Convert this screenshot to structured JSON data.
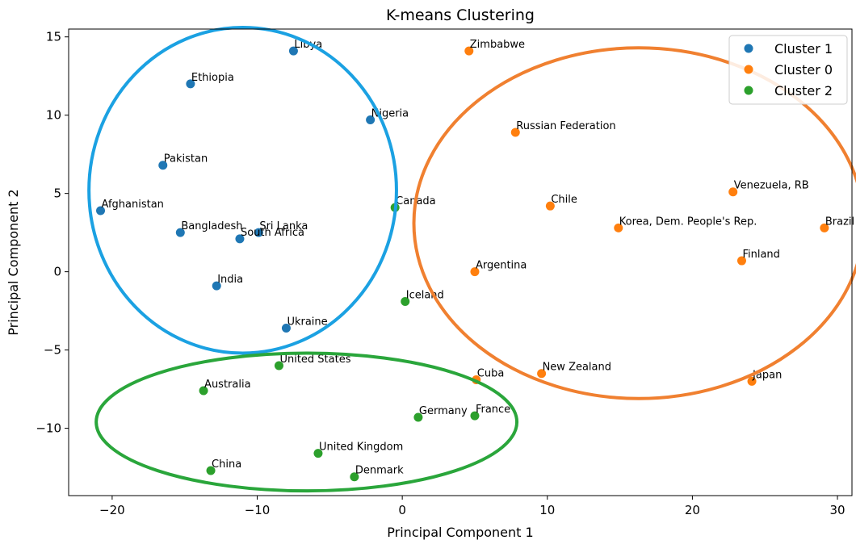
{
  "chart_data": {
    "type": "scatter",
    "title": "K-means Clustering",
    "xlabel": "Principal Component 1",
    "ylabel": "Principal Component 2",
    "xlim": [
      -23,
      31
    ],
    "ylim": [
      -14.3,
      15.5
    ],
    "xticks": [
      -20,
      -10,
      0,
      10,
      20,
      30
    ],
    "yticks": [
      -10,
      -5,
      0,
      5,
      10,
      15
    ],
    "xtick_labels": [
      "−20",
      "−10",
      "0",
      "10",
      "20",
      "30"
    ],
    "ytick_labels": [
      "−10",
      "−5",
      "0",
      "5",
      "10",
      "15"
    ],
    "grid": false,
    "legend_position": "top-right",
    "series": [
      {
        "name": "Cluster 1",
        "color": "#1f77b4",
        "points": [
          {
            "label": "Libya",
            "x": -7.5,
            "y": 14.1
          },
          {
            "label": "Ethiopia",
            "x": -14.6,
            "y": 12.0
          },
          {
            "label": "Nigeria",
            "x": -2.2,
            "y": 9.7
          },
          {
            "label": "Pakistan",
            "x": -16.5,
            "y": 6.8
          },
          {
            "label": "Afghanistan",
            "x": -20.8,
            "y": 3.9
          },
          {
            "label": "Bangladesh",
            "x": -15.3,
            "y": 2.5
          },
          {
            "label": "Sri Lanka",
            "x": -9.9,
            "y": 2.5
          },
          {
            "label": "South Africa",
            "x": -11.2,
            "y": 2.1
          },
          {
            "label": "India",
            "x": -12.8,
            "y": -0.9
          },
          {
            "label": "Ukraine",
            "x": -8.0,
            "y": -3.6
          }
        ]
      },
      {
        "name": "Cluster 0",
        "color": "#ff7f0e",
        "points": [
          {
            "label": "Zimbabwe",
            "x": 4.6,
            "y": 14.1
          },
          {
            "label": "Russian Federation",
            "x": 7.8,
            "y": 8.9
          },
          {
            "label": "Chile",
            "x": 10.2,
            "y": 4.2
          },
          {
            "label": "Venezuela, RB",
            "x": 22.8,
            "y": 5.1
          },
          {
            "label": "Korea, Dem. People's Rep.",
            "x": 14.9,
            "y": 2.8
          },
          {
            "label": "Brazil",
            "x": 29.1,
            "y": 2.8
          },
          {
            "label": "Finland",
            "x": 23.4,
            "y": 0.7
          },
          {
            "label": "Argentina",
            "x": 5.0,
            "y": 0.0
          },
          {
            "label": "Cuba",
            "x": 5.1,
            "y": -6.9
          },
          {
            "label": "New Zealand",
            "x": 9.6,
            "y": -6.5
          },
          {
            "label": "Japan",
            "x": 24.1,
            "y": -7.0
          }
        ]
      },
      {
        "name": "Cluster 2",
        "color": "#2ca02c",
        "points": [
          {
            "label": "Canada",
            "x": -0.5,
            "y": 4.1
          },
          {
            "label": "Iceland",
            "x": 0.2,
            "y": -1.9
          },
          {
            "label": "United States",
            "x": -8.5,
            "y": -6.0
          },
          {
            "label": "Australia",
            "x": -13.7,
            "y": -7.6
          },
          {
            "label": "Germany",
            "x": 1.1,
            "y": -9.3
          },
          {
            "label": "France",
            "x": 5.0,
            "y": -9.2
          },
          {
            "label": "United Kingdom",
            "x": -5.8,
            "y": -11.6
          },
          {
            "label": "China",
            "x": -13.2,
            "y": -12.7
          },
          {
            "label": "Denmark",
            "x": -3.3,
            "y": -13.1
          }
        ]
      }
    ],
    "legend": [
      "Cluster 1",
      "Cluster 0",
      "Cluster 2"
    ],
    "annotations": [
      {
        "shape": "ellipse",
        "color": "#1ba1e2",
        "center": [
          -11.0,
          5.2
        ],
        "radii_data": [
          10.6,
          10.4
        ]
      },
      {
        "shape": "ellipse",
        "color": "#f08030",
        "center": [
          16.3,
          3.1
        ],
        "radii_data": [
          15.5,
          11.2
        ]
      },
      {
        "shape": "ellipse",
        "color": "#2aa63b",
        "center": [
          -6.6,
          -9.6
        ],
        "radii_data": [
          14.5,
          4.4
        ]
      }
    ]
  }
}
